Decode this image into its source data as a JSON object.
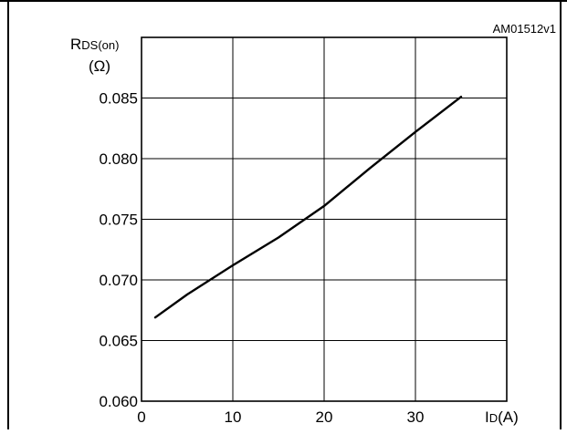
{
  "chart_data": {
    "type": "line",
    "figure_id": "AM01512v1",
    "ylabel": "R",
    "ylabel_sub": "DS(on)",
    "ylabel_unit": "(Ω)",
    "xlabel": "I",
    "xlabel_sub": "D",
    "xlabel_unit": "(A)",
    "xlim": [
      0,
      40
    ],
    "ylim": [
      0.06,
      0.09
    ],
    "xticks": [
      0,
      10,
      20,
      30
    ],
    "xtick_labels": [
      "0",
      "10",
      "20",
      "30"
    ],
    "yticks": [
      0.06,
      0.065,
      0.07,
      0.075,
      0.08,
      0.085
    ],
    "ytick_labels": [
      "0.060",
      "0.065",
      "0.070",
      "0.075",
      "0.080",
      "0.085"
    ],
    "grid": true,
    "series": [
      {
        "x": [
          1.5,
          5,
          10,
          15,
          20,
          25,
          30,
          35
        ],
        "y": [
          0.0669,
          0.0688,
          0.0712,
          0.0735,
          0.0761,
          0.0792,
          0.0822,
          0.0851
        ]
      }
    ]
  }
}
